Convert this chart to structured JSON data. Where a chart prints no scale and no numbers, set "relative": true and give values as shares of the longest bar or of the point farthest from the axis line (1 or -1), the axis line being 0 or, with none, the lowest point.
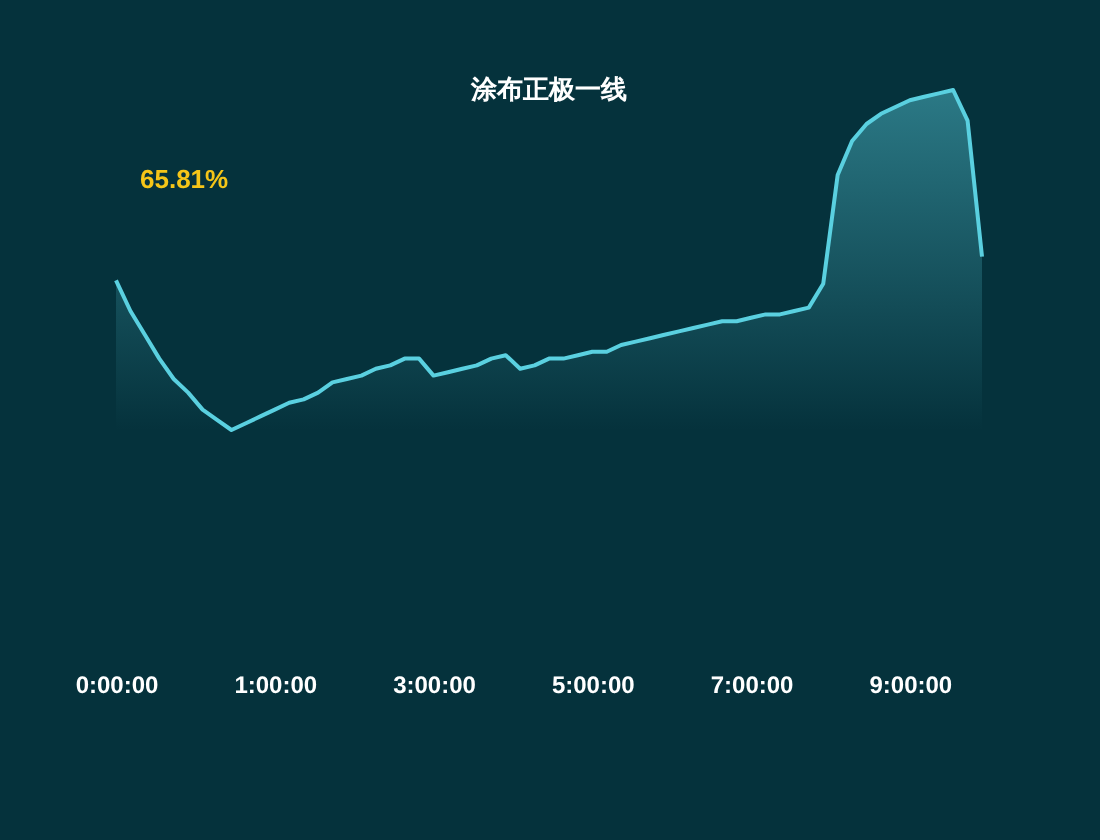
{
  "chart_data": {
    "type": "area",
    "title": "涂布正极一线",
    "relative": true,
    "grid": false,
    "annotations": [
      "65.81%"
    ],
    "categories": [
      "0:00:00",
      null,
      null,
      null,
      null,
      null,
      null,
      null,
      null,
      null,
      null,
      "1:00:00",
      null,
      null,
      null,
      null,
      null,
      null,
      null,
      null,
      null,
      null,
      "3:00:00",
      null,
      null,
      null,
      null,
      null,
      null,
      null,
      null,
      null,
      null,
      "5:00:00",
      null,
      null,
      null,
      null,
      null,
      null,
      null,
      null,
      null,
      null,
      "7:00:00",
      null,
      null,
      null,
      null,
      null,
      null,
      null,
      null,
      null,
      null,
      "9:00:00",
      null,
      null,
      null,
      null,
      null
    ],
    "series": [
      {
        "color": "#5ad0e0",
        "values": [
          0.44,
          0.35,
          0.28,
          0.21,
          0.15,
          0.11,
          0.06,
          0.03,
          0,
          0.02,
          0.04,
          0.06,
          0.08,
          0.09,
          0.11,
          0.14,
          0.15,
          0.16,
          0.18,
          0.19,
          0.21,
          0.21,
          0.16,
          0.17,
          0.18,
          0.19,
          0.21,
          0.22,
          0.18,
          0.19,
          0.21,
          0.21,
          0.22,
          0.23,
          0.23,
          0.25,
          0.26,
          0.27,
          0.28,
          0.29,
          0.3,
          0.31,
          0.32,
          0.32,
          0.33,
          0.34,
          0.34,
          0.35,
          0.36,
          0.43,
          0.75,
          0.85,
          0.9,
          0.93,
          0.95,
          0.97,
          0.98,
          0.99,
          1.0,
          0.91,
          0.51
        ]
      }
    ]
  }
}
